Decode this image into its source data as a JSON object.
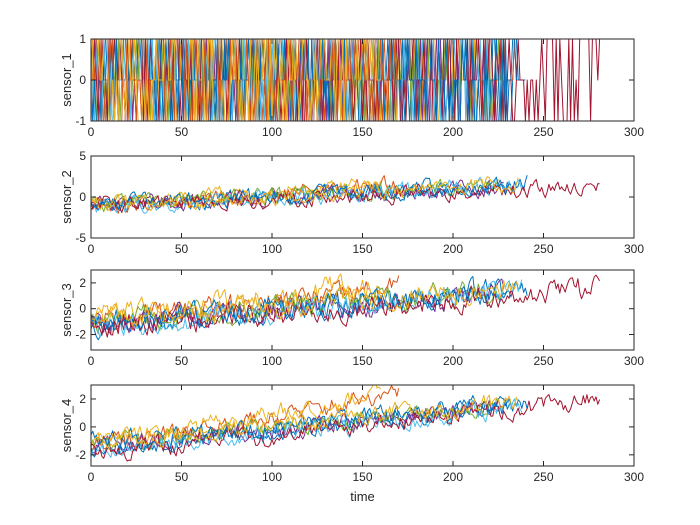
{
  "chart_data": [
    {
      "type": "line",
      "title": "",
      "xlabel": "",
      "ylabel": "sensor_1",
      "xlim": [
        0,
        300
      ],
      "ylim": [
        -1,
        1
      ],
      "xticks": [
        0,
        50,
        100,
        150,
        200,
        250,
        300
      ],
      "yticks": [
        -1,
        0,
        1
      ],
      "grid": false,
      "legend": "none",
      "kind": "binary",
      "seed": 11,
      "series": [
        {
          "color": "#0072BD",
          "length": 240,
          "start": 0,
          "end": 0,
          "noise": 0
        },
        {
          "color": "#D95319",
          "length": 236,
          "start": 0,
          "end": 0,
          "noise": 0
        },
        {
          "color": "#EDB120",
          "length": 230,
          "start": 0,
          "end": 0,
          "noise": 0
        },
        {
          "color": "#7E2F8E",
          "length": 225,
          "start": 0,
          "end": 0,
          "noise": 0
        },
        {
          "color": "#77AC30",
          "length": 228,
          "start": 0,
          "end": 0,
          "noise": 0
        },
        {
          "color": "#4DBEEE",
          "length": 222,
          "start": 0,
          "end": 0,
          "noise": 0
        },
        {
          "color": "#A2142F",
          "length": 281,
          "start": 0,
          "end": 0,
          "noise": 0
        },
        {
          "color": "#0072BD",
          "length": 235,
          "start": 0,
          "end": 0,
          "noise": 0
        },
        {
          "color": "#D95319",
          "length": 170,
          "start": 0,
          "end": 0,
          "noise": 0
        },
        {
          "color": "#EDB120",
          "length": 160,
          "start": 0,
          "end": 0,
          "noise": 0
        }
      ]
    },
    {
      "type": "line",
      "title": "",
      "xlabel": "",
      "ylabel": "sensor_2",
      "xlim": [
        0,
        300
      ],
      "ylim": [
        -5,
        5
      ],
      "xticks": [
        0,
        50,
        100,
        150,
        200,
        250,
        300
      ],
      "yticks": [
        -5,
        0,
        5
      ],
      "grid": false,
      "legend": "none",
      "kind": "trend",
      "seed": 23,
      "series": [
        {
          "color": "#0072BD",
          "length": 241,
          "start": -1.0,
          "end": 1.8,
          "noise": 0.8
        },
        {
          "color": "#D95319",
          "length": 170,
          "start": -1.2,
          "end": 1.8,
          "noise": 0.8
        },
        {
          "color": "#EDB120",
          "length": 160,
          "start": -0.8,
          "end": 1.5,
          "noise": 0.8
        },
        {
          "color": "#7E2F8E",
          "length": 228,
          "start": -1.0,
          "end": 1.2,
          "noise": 0.8
        },
        {
          "color": "#77AC30",
          "length": 225,
          "start": -0.8,
          "end": 1.4,
          "noise": 0.8
        },
        {
          "color": "#4DBEEE",
          "length": 238,
          "start": -1.2,
          "end": 1.6,
          "noise": 0.8
        },
        {
          "color": "#A2142F",
          "length": 281,
          "start": -1.0,
          "end": 1.3,
          "noise": 0.8
        },
        {
          "color": "#0072BD",
          "length": 232,
          "start": -0.9,
          "end": 1.4,
          "noise": 0.8
        },
        {
          "color": "#EDB120",
          "length": 236,
          "start": -1.1,
          "end": 1.7,
          "noise": 0.8
        }
      ]
    },
    {
      "type": "line",
      "title": "",
      "xlabel": "",
      "ylabel": "sensor_3",
      "xlim": [
        0,
        300
      ],
      "ylim": [
        -3.2,
        3
      ],
      "xticks": [
        0,
        50,
        100,
        150,
        200,
        250,
        300
      ],
      "yticks": [
        -2,
        0,
        2
      ],
      "grid": false,
      "legend": "none",
      "kind": "trend",
      "seed": 37,
      "series": [
        {
          "color": "#0072BD",
          "length": 241,
          "start": -1.2,
          "end": 1.6,
          "noise": 0.75
        },
        {
          "color": "#D95319",
          "length": 170,
          "start": -0.9,
          "end": 1.6,
          "noise": 0.75
        },
        {
          "color": "#EDB120",
          "length": 160,
          "start": -0.5,
          "end": 2.0,
          "noise": 0.75
        },
        {
          "color": "#7E2F8E",
          "length": 228,
          "start": -1.2,
          "end": 1.2,
          "noise": 0.75
        },
        {
          "color": "#77AC30",
          "length": 225,
          "start": -1.0,
          "end": 1.5,
          "noise": 0.75
        },
        {
          "color": "#4DBEEE",
          "length": 238,
          "start": -1.4,
          "end": 1.6,
          "noise": 0.75
        },
        {
          "color": "#A2142F",
          "length": 281,
          "start": -1.3,
          "end": 1.7,
          "noise": 0.75
        },
        {
          "color": "#0072BD",
          "length": 232,
          "start": -1.0,
          "end": 1.4,
          "noise": 0.75
        },
        {
          "color": "#EDB120",
          "length": 236,
          "start": -0.8,
          "end": 1.8,
          "noise": 0.75
        }
      ]
    },
    {
      "type": "line",
      "title": "",
      "xlabel": "time",
      "ylabel": "sensor_4",
      "xlim": [
        0,
        300
      ],
      "ylim": [
        -2.8,
        3
      ],
      "xticks": [
        0,
        50,
        100,
        150,
        200,
        250,
        300
      ],
      "yticks": [
        -2,
        0,
        2
      ],
      "grid": false,
      "legend": "none",
      "kind": "trend",
      "seed": 53,
      "series": [
        {
          "color": "#0072BD",
          "length": 241,
          "start": -1.4,
          "end": 1.6,
          "noise": 0.55
        },
        {
          "color": "#D95319",
          "length": 170,
          "start": -1.2,
          "end": 2.3,
          "noise": 0.55
        },
        {
          "color": "#EDB120",
          "length": 160,
          "start": -1.0,
          "end": 2.4,
          "noise": 0.55
        },
        {
          "color": "#7E2F8E",
          "length": 228,
          "start": -1.3,
          "end": 1.5,
          "noise": 0.55
        },
        {
          "color": "#77AC30",
          "length": 225,
          "start": -1.2,
          "end": 1.6,
          "noise": 0.55
        },
        {
          "color": "#4DBEEE",
          "length": 238,
          "start": -1.6,
          "end": 1.4,
          "noise": 0.55
        },
        {
          "color": "#A2142F",
          "length": 281,
          "start": -1.8,
          "end": 2.0,
          "noise": 0.55
        },
        {
          "color": "#0072BD",
          "length": 232,
          "start": -1.1,
          "end": 1.7,
          "noise": 0.55
        },
        {
          "color": "#EDB120",
          "length": 236,
          "start": -1.0,
          "end": 1.9,
          "noise": 0.55
        }
      ]
    }
  ]
}
